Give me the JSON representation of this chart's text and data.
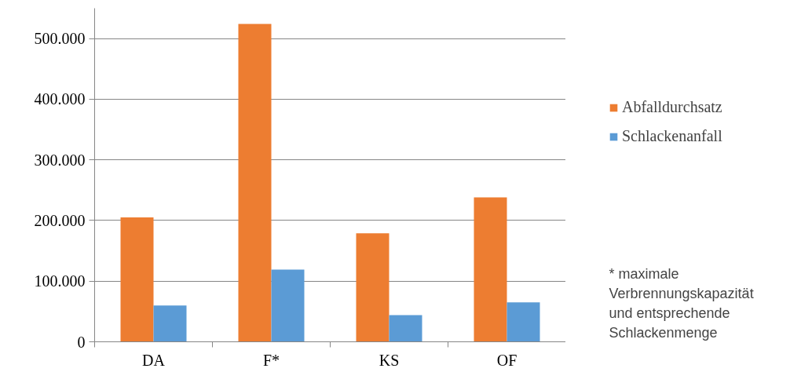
{
  "chart_data": {
    "type": "bar",
    "categories": [
      "DA",
      "F*",
      "KS",
      "OF"
    ],
    "series": [
      {
        "name": "Abfalldurchsatz",
        "color": "#ed7d31",
        "values": [
          205000,
          524000,
          179000,
          238000
        ]
      },
      {
        "name": "Schlackenanfall",
        "color": "#5b9bd5",
        "values": [
          60000,
          119000,
          44000,
          65000
        ]
      }
    ],
    "ylim": [
      0,
      550000
    ],
    "yticks": [
      0,
      {
        "value": 100000,
        "label": "100.000"
      },
      {
        "value": 200000,
        "label": "200.000"
      },
      {
        "value": 300000,
        "label": "300.000"
      },
      {
        "value": 400000,
        "label": "400.000"
      },
      {
        "value": 500000,
        "label": "500.000"
      }
    ],
    "grid": "y",
    "legend": "right",
    "annotations": [
      "* maximale\nVerbrennungskapazität\nund entsprechende\nSchlackenmenge"
    ]
  }
}
